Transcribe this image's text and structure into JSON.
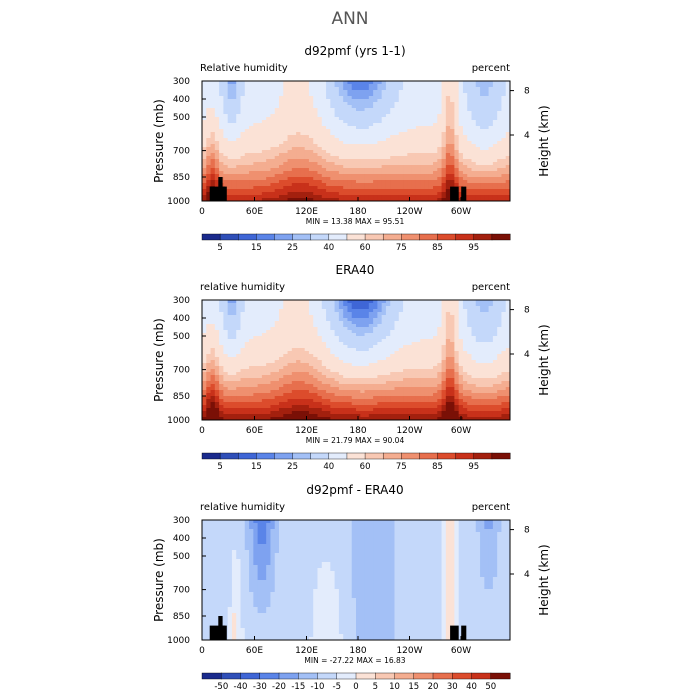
{
  "figure": {
    "title": "ANN"
  },
  "chart_data": [
    {
      "type": "heatmap",
      "title": "d92pmf (yrs 1-1)",
      "left_label": "Relative humidity",
      "right_label": "percent",
      "ylabel": "Pressure (mb)",
      "ylabel_right": "Height (km)",
      "x_ticks": [
        "0",
        "60E",
        "120E",
        "180",
        "120W",
        "60W"
      ],
      "y_ticks": [
        "300",
        "400",
        "500",
        "700",
        "850",
        "1000"
      ],
      "y_ticks_right": [
        "8",
        "4"
      ],
      "stats_text": "MIN =   13.38   MAX =   95.51",
      "min": 13.38,
      "max": 95.51,
      "colorbar": {
        "labels": [
          "5",
          "15",
          "25",
          "40",
          "60",
          "75",
          "85",
          "95"
        ],
        "levels": [
          5,
          10,
          15,
          20,
          25,
          30,
          40,
          50,
          60,
          65,
          70,
          75,
          80,
          85,
          90,
          95
        ],
        "colors": [
          "#1a2a8c",
          "#2f4fb8",
          "#3f66d6",
          "#5a84e8",
          "#7ea2f0",
          "#a3c0f6",
          "#c4d8fa",
          "#e3ecfc",
          "#fbe2d6",
          "#f8c8b3",
          "#f4ad90",
          "#ef906f",
          "#e76f4d",
          "#dc4c2c",
          "#c8311a",
          "#a3200e",
          "#7a1006"
        ]
      },
      "terrain": true
    },
    {
      "type": "heatmap",
      "title": "ERA40",
      "left_label": "relative humidity",
      "right_label": "percent",
      "ylabel": "Pressure (mb)",
      "ylabel_right": "Height (km)",
      "x_ticks": [
        "0",
        "60E",
        "120E",
        "180",
        "120W",
        "60W"
      ],
      "y_ticks": [
        "300",
        "400",
        "500",
        "700",
        "850",
        "1000"
      ],
      "y_ticks_right": [
        "8",
        "4"
      ],
      "stats_text": "MIN =   21.79   MAX =   90.04",
      "min": 21.79,
      "max": 90.04,
      "colorbar": {
        "labels": [
          "5",
          "15",
          "25",
          "40",
          "60",
          "75",
          "85",
          "95"
        ],
        "levels": [
          5,
          10,
          15,
          20,
          25,
          30,
          40,
          50,
          60,
          65,
          70,
          75,
          80,
          85,
          90,
          95
        ],
        "colors": [
          "#1a2a8c",
          "#2f4fb8",
          "#3f66d6",
          "#5a84e8",
          "#7ea2f0",
          "#a3c0f6",
          "#c4d8fa",
          "#e3ecfc",
          "#fbe2d6",
          "#f8c8b3",
          "#f4ad90",
          "#ef906f",
          "#e76f4d",
          "#dc4c2c",
          "#c8311a",
          "#a3200e",
          "#7a1006"
        ]
      },
      "terrain": false
    },
    {
      "type": "heatmap",
      "title": "d92pmf - ERA40",
      "left_label": "relative humidity",
      "right_label": "percent",
      "ylabel": "Pressure (mb)",
      "ylabel_right": "Height (km)",
      "x_ticks": [
        "0",
        "60E",
        "120E",
        "180",
        "120W",
        "60W"
      ],
      "y_ticks": [
        "300",
        "400",
        "500",
        "700",
        "850",
        "1000"
      ],
      "y_ticks_right": [
        "8",
        "4"
      ],
      "stats_text": "MIN =  -27.22   MAX =   16.83",
      "min": -27.22,
      "max": 16.83,
      "colorbar": {
        "labels": [
          "-50",
          "-40",
          "-30",
          "-20",
          "-15",
          "-10",
          "-5",
          "0",
          "5",
          "10",
          "15",
          "20",
          "30",
          "40",
          "50"
        ],
        "levels": [
          -50,
          -40,
          -30,
          -20,
          -15,
          -10,
          -5,
          0,
          5,
          10,
          15,
          20,
          30,
          40,
          50
        ],
        "colors": [
          "#1a2a8c",
          "#2f4fb8",
          "#3f66d6",
          "#5a84e8",
          "#7ea2f0",
          "#a3c0f6",
          "#c4d8fa",
          "#e3ecfc",
          "#fbe2d6",
          "#f8c8b3",
          "#f4ad90",
          "#ef906f",
          "#e76f4d",
          "#dc4c2c",
          "#c8311a",
          "#7a1006"
        ]
      },
      "terrain": true
    }
  ]
}
